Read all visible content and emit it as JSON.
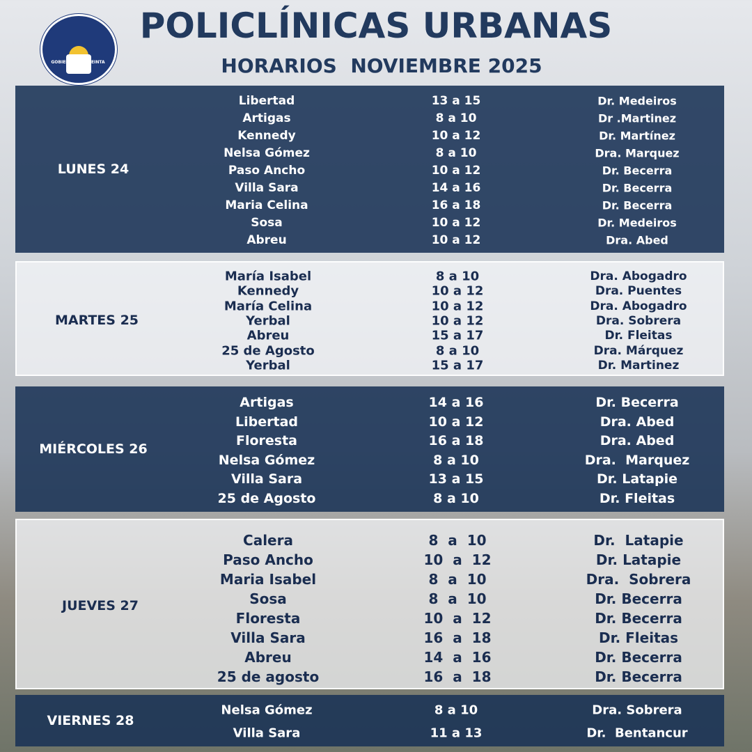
{
  "header": {
    "logo_text": "GOBIERNO DE TREINTA Y TRES",
    "title": "POLICLÍNICAS URBANAS",
    "subtitle": "HORARIOS  NOVIEMBRE 2025"
  },
  "days": [
    {
      "day": "LUNES 24",
      "rows": [
        [
          "Libertad",
          "13 a 15",
          "Dr. Medeiros"
        ],
        [
          "Artigas",
          "8 a 10",
          "Dr .Martinez"
        ],
        [
          "Kennedy",
          "10 a 12",
          "Dr. Martínez"
        ],
        [
          "Nelsa Gómez",
          "8 a 10",
          "Dra. Marquez"
        ],
        [
          "Paso Ancho",
          "10 a 12",
          "Dr. Becerra"
        ],
        [
          "Villa Sara",
          "14 a 16",
          "Dr. Becerra"
        ],
        [
          "Maria Celina",
          "16 a 18",
          "Dr. Becerra"
        ],
        [
          "Sosa",
          "10 a 12",
          "Dr. Medeiros"
        ],
        [
          "Abreu",
          "10 a 12",
          "Dra. Abed"
        ]
      ]
    },
    {
      "day": "MARTES 25",
      "rows": [
        [
          "María Isabel",
          "8 a 10",
          "Dra. Abogadro"
        ],
        [
          "Kennedy",
          "10 a 12",
          "Dra. Puentes"
        ],
        [
          "María Celina",
          "10 a 12",
          "Dra. Abogadro"
        ],
        [
          "Yerbal",
          "10 a 12",
          "Dra. Sobrera"
        ],
        [
          "Abreu",
          "15 a 17",
          "Dr. Fleitas"
        ],
        [
          "25 de Agosto",
          "8 a 10",
          "Dra. Márquez"
        ],
        [
          "Yerbal",
          "15 a 17",
          "Dr. Martinez"
        ]
      ]
    },
    {
      "day": "MIÉRCOLES 26",
      "rows": [
        [
          "Artigas",
          "14 a 16",
          "Dr. Becerra"
        ],
        [
          "Libertad",
          "10 a 12",
          "Dra. Abed"
        ],
        [
          "Floresta",
          "16 a 18",
          "Dra. Abed"
        ],
        [
          "Nelsa Gómez",
          "8 a 10",
          "Dra.  Marquez"
        ],
        [
          "Villa Sara",
          "13 a 15",
          "Dr. Latapie"
        ],
        [
          "25 de Agosto",
          "8 a 10",
          "Dr. Fleitas"
        ]
      ]
    },
    {
      "day": "JUEVES 27",
      "rows": [
        [
          "Calera",
          "8  a  10",
          "Dr.  Latapie"
        ],
        [
          "Paso Ancho",
          "10  a  12",
          "Dr. Latapie"
        ],
        [
          "Maria Isabel",
          "8  a  10",
          "Dra.  Sobrera"
        ],
        [
          "Sosa",
          "8  a  10",
          "Dr. Becerra"
        ],
        [
          "Floresta",
          "10  a  12",
          "Dr. Becerra"
        ],
        [
          "Villa Sara",
          "16  a  18",
          "Dr. Fleitas"
        ],
        [
          "Abreu",
          "14  a  16",
          "Dr. Becerra"
        ],
        [
          "25 de agosto",
          "16  a  18",
          "Dr. Becerra"
        ]
      ]
    },
    {
      "day": "VIERNES 28",
      "rows": [
        [
          "Nelsa Gómez",
          "8 a 10",
          "Dra. Sobrera"
        ],
        [
          "Villa Sara",
          "11 a 13",
          "Dr.  Bentancur"
        ]
      ]
    }
  ]
}
